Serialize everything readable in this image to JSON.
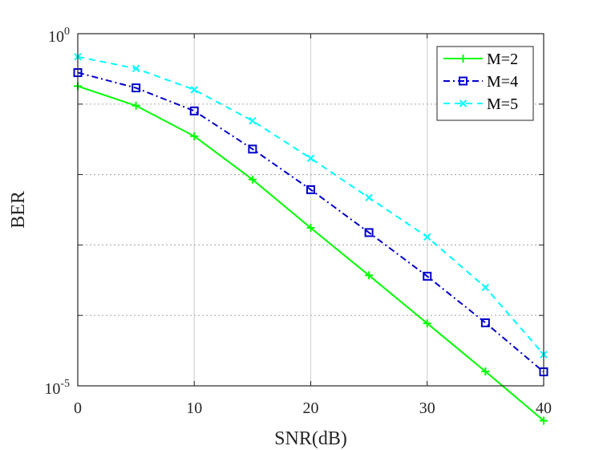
{
  "chart_data": {
    "type": "line",
    "xlabel": "SNR(dB)",
    "ylabel": "BER",
    "x": [
      0,
      5,
      10,
      15,
      20,
      25,
      30,
      35,
      40
    ],
    "xlim": [
      0,
      40
    ],
    "xticks": [
      0,
      10,
      20,
      30,
      40
    ],
    "xtick_labels": [
      "0",
      "10",
      "20",
      "30",
      "40"
    ],
    "ylim": [
      1e-05,
      1
    ],
    "yscale": "log",
    "yticks": [
      {
        "value": 1,
        "base": "10",
        "exponent": "0"
      },
      {
        "value": 1e-05,
        "base": "10",
        "exponent": "-5"
      }
    ],
    "grid": true,
    "legend_position": "top-right",
    "series": [
      {
        "name": "M=2",
        "color": "#00ff00",
        "line_style": "solid",
        "marker": "plus",
        "values": [
          0.18,
          0.095,
          0.035,
          0.0085,
          0.00175,
          0.00037,
          7.7e-05,
          1.6e-05,
          3.2e-06
        ]
      },
      {
        "name": "M=4",
        "color": "#0000cc",
        "line_style": "dashdot",
        "marker": "square",
        "values": [
          0.28,
          0.17,
          0.08,
          0.023,
          0.0061,
          0.0015,
          0.00036,
          7.85e-05,
          1.58e-05
        ]
      },
      {
        "name": "M=5",
        "color": "#00ffff",
        "line_style": "dashed",
        "marker": "x",
        "values": [
          0.47,
          0.32,
          0.16,
          0.058,
          0.017,
          0.0047,
          0.0013,
          0.00025,
          2.78e-05
        ]
      }
    ]
  }
}
